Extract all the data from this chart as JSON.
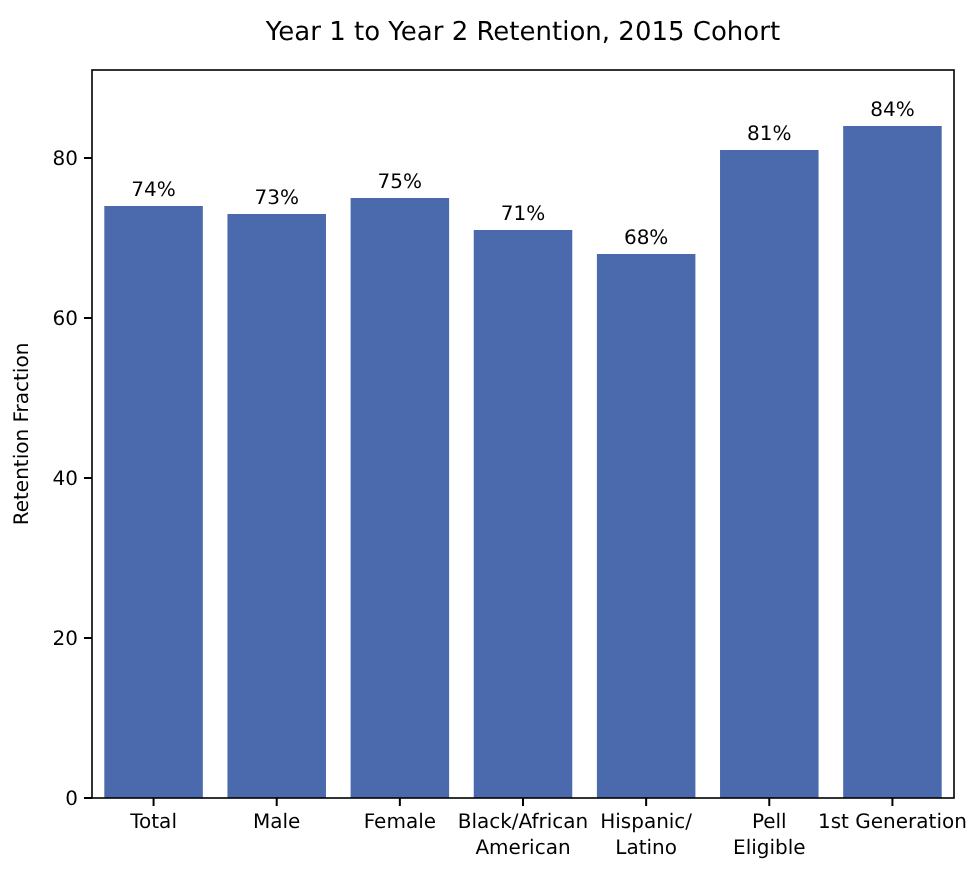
{
  "chart_data": {
    "type": "bar",
    "title": "Year 1 to Year 2 Retention, 2015 Cohort",
    "ylabel": "Retention Fraction",
    "categories": [
      "Total",
      "Male",
      "Female",
      "Black/African\nAmerican",
      "Hispanic/\nLatino",
      "Pell\nEligible",
      "1st Generation"
    ],
    "values": [
      74,
      73,
      75,
      71,
      68,
      81,
      84
    ],
    "value_labels": [
      "74%",
      "73%",
      "75%",
      "71%",
      "68%",
      "81%",
      "84%"
    ],
    "color": "#4a6aad",
    "ylim": [
      0,
      91
    ],
    "yticks": [
      0,
      20,
      40,
      60,
      80
    ],
    "grid": false
  }
}
